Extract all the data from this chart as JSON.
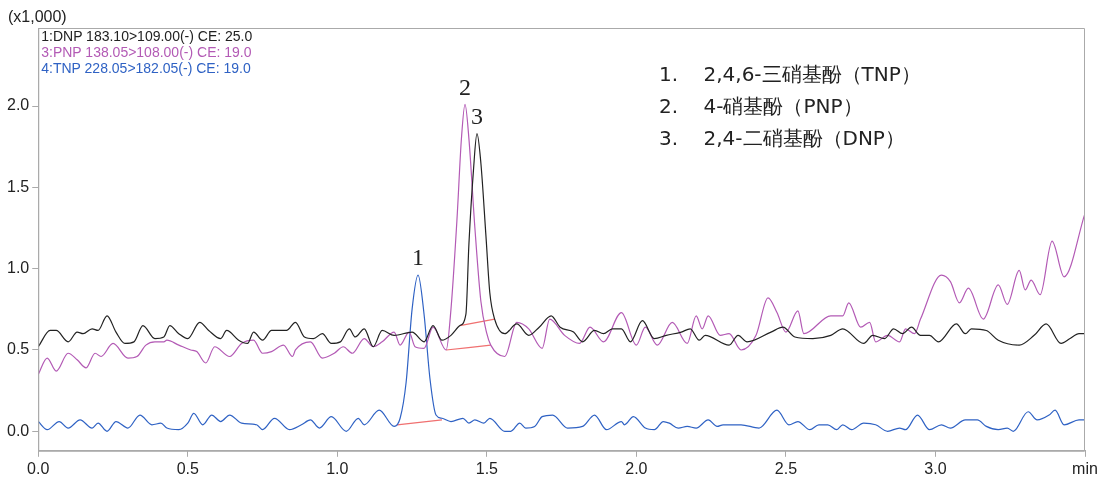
{
  "chart_data": {
    "type": "line",
    "ylabel": "(x1,000)",
    "legend": "top left",
    "line_style": "solid",
    "xlim": [
      0,
      3.5
    ],
    "ylim": [
      -0.12,
      2.48
    ],
    "xticks": [
      {
        "value": 0,
        "label": "0.0"
      },
      {
        "value": 0.5,
        "label": "0.5"
      },
      {
        "value": 1,
        "label": "1.0"
      },
      {
        "value": 1.5,
        "label": "1.5"
      },
      {
        "value": 2,
        "label": "2.0"
      },
      {
        "value": 2.5,
        "label": "2.5"
      },
      {
        "value": 3,
        "label": "3.0"
      },
      {
        "value": 3.5,
        "label": "min"
      }
    ],
    "yticks": [
      {
        "value": 0,
        "label": "0.0"
      },
      {
        "value": 0.5,
        "label": "0.5"
      },
      {
        "value": 1,
        "label": "1.0"
      },
      {
        "value": 1.5,
        "label": "1.5"
      },
      {
        "value": 2,
        "label": "2.0"
      }
    ],
    "series": [
      {
        "name": "1:DNP 183.10>109.00(-) CE: 25.0",
        "color": "#222222",
        "x": [
          0,
          0.04,
          0.06,
          0.1,
          0.13,
          0.15,
          0.18,
          0.2,
          0.23,
          0.26,
          0.29,
          0.32,
          0.35,
          0.39,
          0.42,
          0.44,
          0.47,
          0.5,
          0.54,
          0.57,
          0.61,
          0.63,
          0.67,
          0.7,
          0.72,
          0.75,
          0.78,
          0.83,
          0.86,
          0.89,
          0.92,
          0.95,
          0.98,
          1.01,
          1.04,
          1.06,
          1.09,
          1.12,
          1.15,
          1.19,
          1.25,
          1.29,
          1.32,
          1.35,
          1.38,
          1.41,
          1.43,
          1.44,
          1.455,
          1.467,
          1.48,
          1.497,
          1.51,
          1.526,
          1.56,
          1.6,
          1.64,
          1.675,
          1.715,
          1.745,
          1.79,
          1.82,
          1.86,
          1.89,
          1.92,
          1.95,
          1.98,
          2.02,
          2.06,
          2.1,
          2.15,
          2.18,
          2.21,
          2.23,
          2.31,
          2.34,
          2.37,
          2.45,
          2.49,
          2.53,
          2.59,
          2.65,
          2.69,
          2.76,
          2.79,
          2.83,
          2.86,
          2.89,
          2.92,
          2.95,
          2.98,
          3.01,
          3.07,
          3.1,
          3.12,
          3.17,
          3.21,
          3.28,
          3.33,
          3.37,
          3.42,
          3.45,
          3.48,
          3.5
        ],
        "values": [
          0.52,
          0.62,
          0.62,
          0.55,
          0.61,
          0.6,
          0.63,
          0.62,
          0.71,
          0.61,
          0.54,
          0.55,
          0.65,
          0.57,
          0.58,
          0.65,
          0.6,
          0.57,
          0.67,
          0.62,
          0.57,
          0.62,
          0.56,
          0.54,
          0.61,
          0.56,
          0.62,
          0.62,
          0.67,
          0.58,
          0.57,
          0.6,
          0.54,
          0.55,
          0.63,
          0.58,
          0.63,
          0.52,
          0.62,
          0.59,
          0.61,
          0.55,
          0.65,
          0.56,
          0.59,
          0.65,
          0.72,
          1.15,
          1.6,
          1.83,
          1.65,
          1.2,
          0.85,
          0.69,
          0.6,
          0.66,
          0.59,
          0.64,
          0.71,
          0.64,
          0.61,
          0.55,
          0.62,
          0.6,
          0.63,
          0.63,
          0.55,
          0.68,
          0.57,
          0.59,
          0.61,
          0.63,
          0.56,
          0.59,
          0.53,
          0.59,
          0.55,
          0.61,
          0.64,
          0.58,
          0.57,
          0.59,
          0.63,
          0.54,
          0.59,
          0.57,
          0.63,
          0.6,
          0.64,
          0.59,
          0.59,
          0.55,
          0.66,
          0.6,
          0.63,
          0.62,
          0.56,
          0.53,
          0.59,
          0.66,
          0.54,
          0.57,
          0.6,
          0.6
        ]
      },
      {
        "name": "3:PNP 138.05>108.00(-) CE: 19.0",
        "color": "#b35ab5",
        "x": [
          0,
          0.03,
          0.06,
          0.1,
          0.13,
          0.16,
          0.19,
          0.21,
          0.25,
          0.3,
          0.33,
          0.36,
          0.39,
          0.42,
          0.43,
          0.47,
          0.51,
          0.53,
          0.56,
          0.59,
          0.64,
          0.68,
          0.72,
          0.75,
          0.78,
          0.82,
          0.85,
          0.86,
          0.91,
          0.95,
          0.99,
          1.02,
          1.05,
          1.09,
          1.12,
          1.15,
          1.19,
          1.21,
          1.24,
          1.26,
          1.29,
          1.32,
          1.364,
          1.38,
          1.4,
          1.415,
          1.427,
          1.44,
          1.46,
          1.48,
          1.5,
          1.513,
          1.56,
          1.6,
          1.64,
          1.685,
          1.71,
          1.76,
          1.81,
          1.845,
          1.89,
          1.95,
          2.0,
          2.03,
          2.07,
          2.12,
          2.17,
          2.2,
          2.22,
          2.24,
          2.28,
          2.31,
          2.35,
          2.4,
          2.44,
          2.47,
          2.5,
          2.54,
          2.56,
          2.65,
          2.69,
          2.71,
          2.75,
          2.78,
          2.8,
          2.84,
          2.88,
          2.9,
          2.93,
          2.95,
          3.02,
          3.05,
          3.08,
          3.11,
          3.16,
          3.21,
          3.24,
          3.28,
          3.3,
          3.32,
          3.35,
          3.39,
          3.43,
          3.5
        ],
        "values": [
          0.35,
          0.45,
          0.37,
          0.48,
          0.44,
          0.39,
          0.48,
          0.46,
          0.54,
          0.45,
          0.46,
          0.53,
          0.55,
          0.55,
          0.56,
          0.53,
          0.5,
          0.49,
          0.42,
          0.52,
          0.46,
          0.54,
          0.56,
          0.48,
          0.49,
          0.53,
          0.46,
          0.5,
          0.55,
          0.45,
          0.48,
          0.52,
          0.48,
          0.57,
          0.52,
          0.55,
          0.61,
          0.53,
          0.61,
          0.52,
          0.51,
          0.64,
          0.5,
          0.75,
          1.3,
          1.8,
          2.01,
          1.8,
          1.25,
          0.8,
          0.6,
          0.53,
          0.46,
          0.67,
          0.63,
          0.51,
          0.69,
          0.59,
          0.54,
          0.64,
          0.55,
          0.73,
          0.53,
          0.64,
          0.53,
          0.67,
          0.54,
          0.71,
          0.63,
          0.71,
          0.59,
          0.6,
          0.5,
          0.59,
          0.82,
          0.73,
          0.61,
          0.74,
          0.6,
          0.71,
          0.71,
          0.79,
          0.64,
          0.67,
          0.55,
          0.59,
          0.55,
          0.63,
          0.6,
          0.69,
          0.96,
          0.92,
          0.79,
          0.88,
          0.69,
          0.9,
          0.78,
          0.99,
          0.87,
          0.93,
          0.84,
          1.17,
          0.95,
          1.34
        ]
      },
      {
        "name": "4:TNP 228.05>182.05(-) CE: 19.0",
        "color": "#2f62c4",
        "x": [
          0,
          0.03,
          0.07,
          0.1,
          0.14,
          0.18,
          0.2,
          0.23,
          0.26,
          0.3,
          0.34,
          0.38,
          0.41,
          0.43,
          0.47,
          0.5,
          0.52,
          0.55,
          0.58,
          0.61,
          0.64,
          0.68,
          0.73,
          0.75,
          0.79,
          0.84,
          0.88,
          0.91,
          0.94,
          0.98,
          1.03,
          1.07,
          1.09,
          1.14,
          1.19,
          1.21,
          1.23,
          1.25,
          1.27,
          1.29,
          1.31,
          1.33,
          1.35,
          1.38,
          1.42,
          1.44,
          1.46,
          1.49,
          1.51,
          1.56,
          1.58,
          1.61,
          1.63,
          1.66,
          1.685,
          1.72,
          1.77,
          1.82,
          1.86,
          1.9,
          1.95,
          1.96,
          1.99,
          2.03,
          2.06,
          2.09,
          2.11,
          2.14,
          2.17,
          2.2,
          2.24,
          2.27,
          2.29,
          2.35,
          2.41,
          2.47,
          2.51,
          2.54,
          2.58,
          2.61,
          2.64,
          2.67,
          2.69,
          2.72,
          2.76,
          2.8,
          2.84,
          2.88,
          2.9,
          2.94,
          2.98,
          3.02,
          3.05,
          3.1,
          3.14,
          3.17,
          3.21,
          3.24,
          3.26,
          3.31,
          3.34,
          3.38,
          3.4,
          3.43,
          3.48,
          3.5
        ],
        "values": [
          0.06,
          0.01,
          0.06,
          0.02,
          0.07,
          0.02,
          0.05,
          0.0,
          0.06,
          0.02,
          0.1,
          0.04,
          0.05,
          0.02,
          0.01,
          0.05,
          0.11,
          0.04,
          0.1,
          0.06,
          0.1,
          0.05,
          0.04,
          0.01,
          0.08,
          0.01,
          0.04,
          0.07,
          0.02,
          0.09,
          0.0,
          0.08,
          0.04,
          0.13,
          0.03,
          0.08,
          0.3,
          0.75,
          0.96,
          0.72,
          0.32,
          0.1,
          0.08,
          0.06,
          0.08,
          0.05,
          0.07,
          0.05,
          0.08,
          0.0,
          0.0,
          0.05,
          0.02,
          0.03,
          0.09,
          0.1,
          0.02,
          0.03,
          0.1,
          0.01,
          0.06,
          0.04,
          0.09,
          0.02,
          0.01,
          0.06,
          0.05,
          0.02,
          0.03,
          0.02,
          0.07,
          0.03,
          0.04,
          0.04,
          0.02,
          0.13,
          0.04,
          0.06,
          0.01,
          0.04,
          0.04,
          0.01,
          0.04,
          0.01,
          0.05,
          0.04,
          0.0,
          0.02,
          0.01,
          0.1,
          0.01,
          0.04,
          0.02,
          0.07,
          0.07,
          0.03,
          0.01,
          0.02,
          0.0,
          0.12,
          0.07,
          0.1,
          0.13,
          0.04,
          0.07,
          0.07
        ]
      },
      {
        "color": "#f07070",
        "x": [
          1.2,
          1.35
        ],
        "values": [
          0.04,
          0.07
        ]
      },
      {
        "color": "#f07070",
        "x": [
          1.364,
          1.513
        ],
        "values": [
          0.5,
          0.53
        ]
      },
      {
        "color": "#f07070",
        "x": [
          1.41,
          1.526
        ],
        "values": [
          0.65,
          0.69
        ]
      }
    ],
    "annotations": [
      "1.    2,4,6-三硝基酚（TNP）",
      "2.    4-硝基酚（PNP）",
      "3.    2,4-二硝基酚（DNP）",
      {
        "text": "1",
        "x": 1.27,
        "y": 0.96
      },
      {
        "text": "2",
        "x": 1.427,
        "y": 2.01
      },
      {
        "text": "3",
        "x": 1.467,
        "y": 1.83
      }
    ]
  }
}
